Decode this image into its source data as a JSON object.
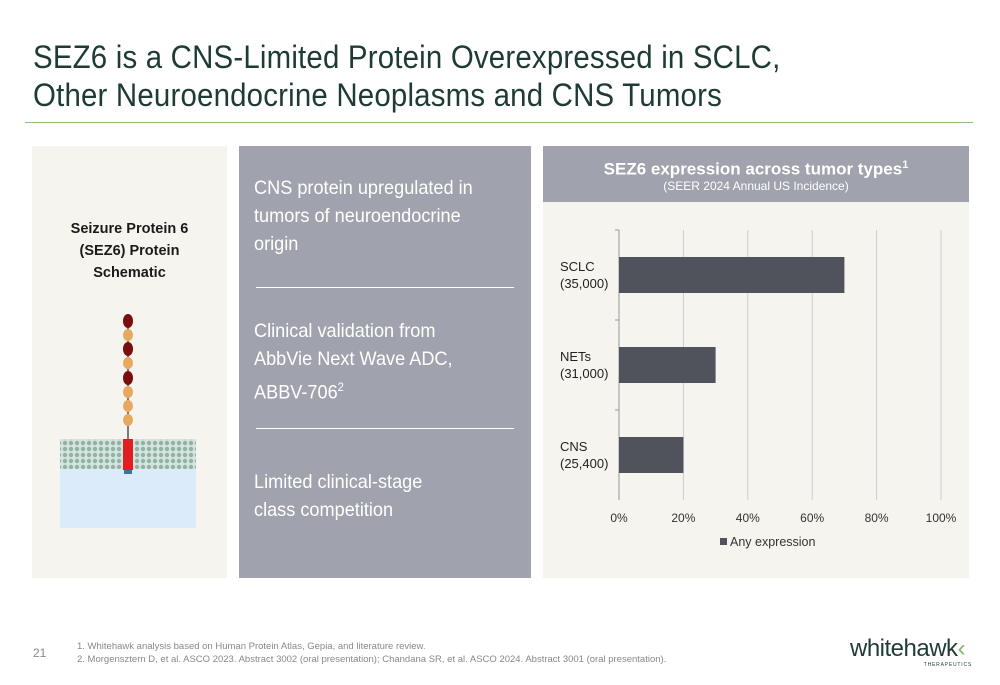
{
  "slide": {
    "title_line1": "SEZ6 is a CNS-Limited Protein Overexpressed in SCLC,",
    "title_line2": "Other Neuroendocrine Neoplasms and CNS Tumors",
    "page_number": "21"
  },
  "schematic": {
    "title_lines": [
      "Seizure Protein 6",
      "(SEZ6) Protein",
      "Schematic"
    ]
  },
  "highlights": [
    {
      "lines": [
        "CNS protein upregulated in",
        "tumors of neuroendocrine",
        "origin"
      ],
      "sup": ""
    },
    {
      "lines": [
        "Clinical validation from",
        "AbbVie Next Wave ADC,",
        "ABBV-706"
      ],
      "sup": "2"
    },
    {
      "lines": [
        "Limited clinical-stage",
        "class competition"
      ],
      "sup": ""
    }
  ],
  "chart_header": {
    "title": "SEZ6 expression across tumor types",
    "title_sup": "1",
    "subtitle": "(SEER 2024 Annual US Incidence)"
  },
  "chart_data": {
    "type": "bar",
    "orientation": "horizontal",
    "categories": [
      {
        "name": "SCLC",
        "count": "(35,000)"
      },
      {
        "name": "NETs",
        "count": "(31,000)"
      },
      {
        "name": "CNS",
        "count": "(25,400)"
      }
    ],
    "series": [
      {
        "name": "Any expression",
        "values": [
          70,
          30,
          20
        ]
      }
    ],
    "xlim": [
      0,
      100
    ],
    "x_ticks": [
      "0%",
      "20%",
      "40%",
      "60%",
      "80%",
      "100%"
    ],
    "grid": true,
    "legend_position": "bottom",
    "bar_color": "#50535c",
    "grid_color": "#cccccc"
  },
  "footnotes": [
    "1. Whitehawk analysis based on Human Protein Atlas, Gepia, and literature review.",
    "2. Morgensztern D, et al. ASCO 2023. Abstract 3002 (oral presentation); Chandana SR, et al. ASCO 2024. Abstract 3001 (oral presentation)."
  ],
  "logo": {
    "wordmark": "whitehawk",
    "tagline": "THERAPEUTICS"
  }
}
